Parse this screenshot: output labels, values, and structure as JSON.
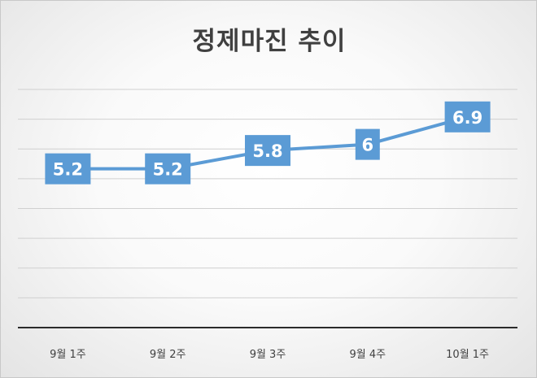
{
  "chart_data": {
    "type": "line",
    "title": "정제마진 추이",
    "categories": [
      "9월 1주",
      "9월 2주",
      "9월 3주",
      "9월 4주",
      "10월 1주"
    ],
    "series": [
      {
        "values": [
          5.2,
          5.2,
          5.8,
          6,
          6.9
        ]
      }
    ],
    "data_labels": [
      "5.2",
      "5.2",
      "5.8",
      "6",
      "6.9"
    ],
    "ylim": [
      0,
      7.8
    ],
    "grid": true,
    "legend": "none",
    "colors": {
      "line": "#5b9bd5",
      "label_box": "#5b9bd5",
      "gridline": "#d0d0d0",
      "axis": "#2b2b2b"
    }
  }
}
